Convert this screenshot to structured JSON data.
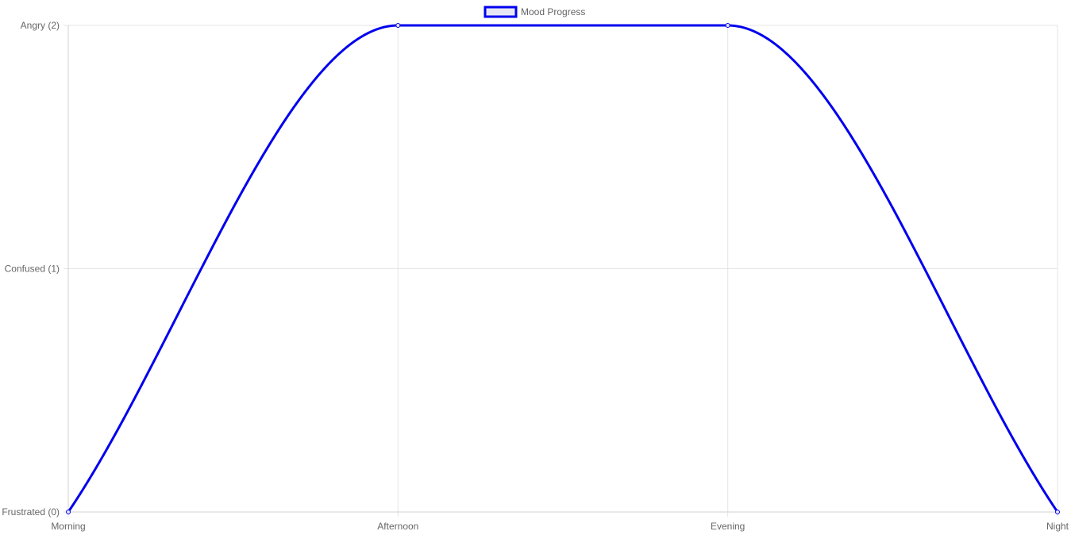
{
  "chart_data": {
    "type": "line",
    "categories": [
      "Morning",
      "Afternoon",
      "Evening",
      "Night"
    ],
    "series": [
      {
        "name": "Mood Progress",
        "values": [
          0,
          2,
          2,
          0
        ],
        "color": "#0000ee",
        "fill_color": "#e6e6f5"
      }
    ],
    "y_tick_labels": [
      "Frustrated (0)",
      "Confused (1)",
      "Angry (2)"
    ],
    "ylim": [
      0,
      2
    ],
    "grid": true,
    "legend_position": "top-center",
    "smooth": true
  }
}
